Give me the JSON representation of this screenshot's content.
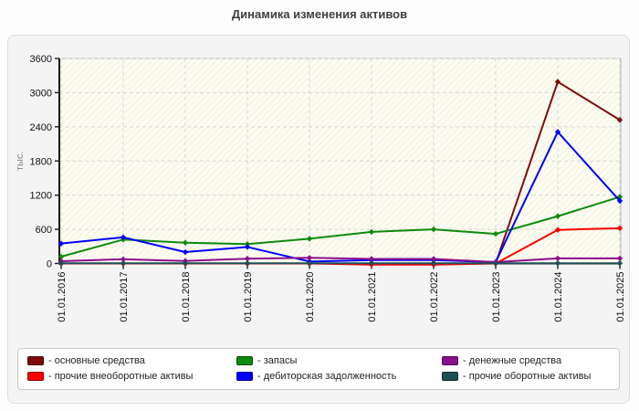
{
  "title": "Динамика изменения активов",
  "chart_data": {
    "type": "line",
    "x": [
      "01.01.2016",
      "01.01.2017",
      "01.01.2018",
      "01.01.2019",
      "01.01.2020",
      "01.01.2021",
      "01.01.2022",
      "01.01.2023",
      "01.01.2024",
      "01.01.2025"
    ],
    "ylabel": "тыс.",
    "ylim": [
      0,
      3600
    ],
    "y_ticks": [
      0,
      600,
      1200,
      1800,
      2400,
      3000,
      3600
    ],
    "grid": true,
    "grid_style": "dashed",
    "legend_position": "bottom",
    "plot_background": "#fcfcf0",
    "hatch_color": "#e8e8d9",
    "gridline_color": "#d8d8d8",
    "axis_color": "#1a1a1a",
    "series": [
      {
        "name": "- основные средства",
        "color": "#7d0c0c",
        "values": [
          0,
          0,
          0,
          0,
          0,
          0,
          0,
          0,
          3190,
          2520
        ]
      },
      {
        "name": "- прочие внеоборотные активы",
        "color": "#ff0000",
        "values": [
          0,
          0,
          0,
          0,
          0,
          -20,
          -20,
          0,
          590,
          620
        ]
      },
      {
        "name": "- запасы",
        "color": "#0e8a0e",
        "values": [
          120,
          420,
          365,
          340,
          435,
          555,
          600,
          520,
          830,
          1170
        ]
      },
      {
        "name": "- дебиторская задолженность",
        "color": "#0000ff",
        "values": [
          350,
          460,
          200,
          290,
          35,
          60,
          60,
          25,
          2310,
          1100
        ]
      },
      {
        "name": "- денежные средства",
        "color": "#8b0e8b",
        "values": [
          40,
          75,
          45,
          85,
          100,
          80,
          80,
          25,
          90,
          90
        ]
      },
      {
        "name": "- прочие оборотные активы",
        "color": "#1e4f55",
        "values": [
          5,
          5,
          5,
          5,
          5,
          5,
          5,
          5,
          5,
          5
        ]
      }
    ]
  }
}
